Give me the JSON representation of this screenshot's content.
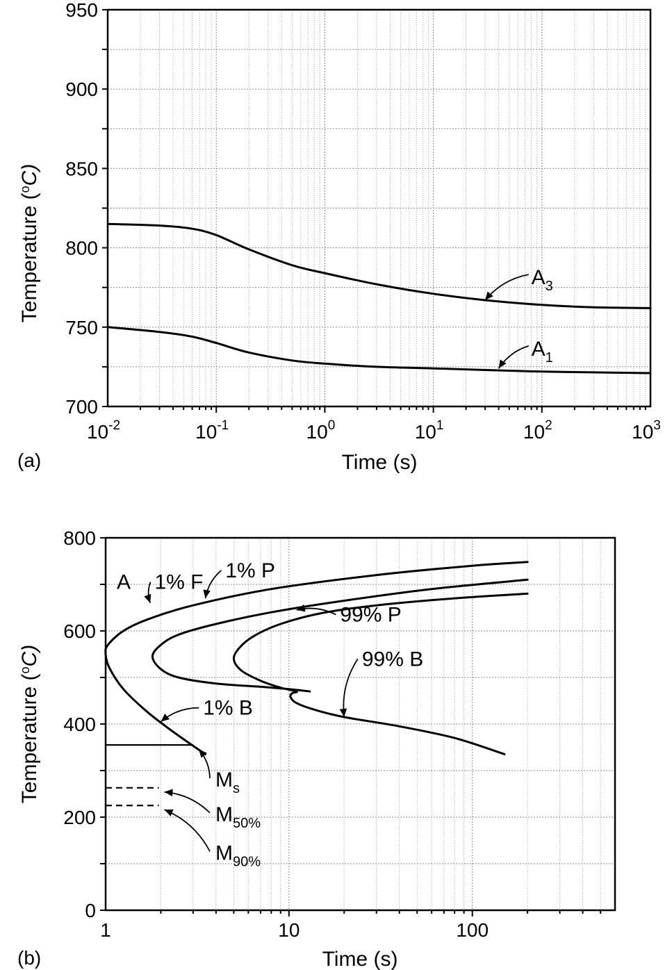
{
  "chart_data": [
    {
      "panel_label": "(a)",
      "type": "line",
      "xscale": "log",
      "xlim": [
        0.01,
        1000
      ],
      "ylim": [
        700,
        950
      ],
      "xlabel": "Time (s)",
      "ylabel": {
        "main": "Temperature (",
        "sup": "o",
        "unit": "C)"
      },
      "grid": true,
      "xticks": [
        {
          "value": 0.01,
          "base": "10",
          "exp": "-2"
        },
        {
          "value": 0.1,
          "base": "10",
          "exp": "-1"
        },
        {
          "value": 1,
          "base": "10",
          "exp": "0"
        },
        {
          "value": 10,
          "base": "10",
          "exp": "1"
        },
        {
          "value": 100,
          "base": "10",
          "exp": "2"
        },
        {
          "value": 1000,
          "base": "10",
          "exp": "3"
        }
      ],
      "yticks": [
        {
          "value": 700,
          "label": "700"
        },
        {
          "value": 750,
          "label": "750"
        },
        {
          "value": 800,
          "label": "800"
        },
        {
          "value": 850,
          "label": "850"
        },
        {
          "value": 900,
          "label": "900"
        },
        {
          "value": 950,
          "label": "950"
        }
      ],
      "series": [
        {
          "name": "A3",
          "x": [
            0.01,
            0.03,
            0.06,
            0.1,
            0.2,
            0.5,
            1,
            3,
            10,
            30,
            100,
            300,
            1000
          ],
          "y": [
            815,
            814,
            812,
            808,
            799,
            789,
            784,
            777,
            771,
            767,
            764,
            762.5,
            762
          ]
        },
        {
          "name": "A1",
          "x": [
            0.01,
            0.03,
            0.06,
            0.1,
            0.2,
            0.5,
            1,
            3,
            10,
            30,
            100,
            300,
            1000
          ],
          "y": [
            750,
            747,
            744,
            740,
            734,
            729,
            727,
            725,
            724,
            723,
            722,
            721.5,
            721
          ]
        }
      ],
      "annotations": [
        {
          "text": "A",
          "sub": "3",
          "x": 80,
          "y": 777,
          "arrow_to": {
            "x": 30,
            "y": 767
          }
        },
        {
          "text": "A",
          "sub": "1",
          "x": 80,
          "y": 732,
          "arrow_to": {
            "x": 40,
            "y": 724
          }
        }
      ]
    },
    {
      "panel_label": "(b)",
      "type": "line",
      "xscale": "log",
      "xlim": [
        1,
        600
      ],
      "ylim": [
        0,
        800
      ],
      "xlabel": "Time (s)",
      "ylabel": {
        "main": "Temperature (",
        "sup": "o",
        "unit": "C)"
      },
      "grid": true,
      "xticks": [
        {
          "value": 1,
          "label": "1"
        },
        {
          "value": 10,
          "label": "10"
        },
        {
          "value": 100,
          "label": "100"
        }
      ],
      "yticks": [
        {
          "value": 0,
          "label": "0"
        },
        {
          "value": 200,
          "label": "200"
        },
        {
          "value": 400,
          "label": "400"
        },
        {
          "value": 600,
          "label": "600"
        },
        {
          "value": 800,
          "label": "800"
        }
      ],
      "region_label": {
        "text": "A",
        "x": 1.15,
        "y": 690
      },
      "series": [
        {
          "name": "1% F / 1% B",
          "x": [
            3.5,
            2.4,
            1.7,
            1.25,
            1.05,
            1.0,
            1.03,
            1.25,
            1.7,
            3,
            8,
            30,
            100,
            200
          ],
          "y": [
            335,
            380,
            425,
            475,
            520,
            550,
            570,
            600,
            625,
            655,
            690,
            720,
            740,
            748
          ]
        },
        {
          "name": "1% P",
          "x": [
            13,
            10,
            7,
            4,
            2.5,
            2.0,
            1.8,
            2.0,
            2.5,
            4,
            8,
            20,
            60,
            200
          ],
          "y": [
            470,
            475,
            480,
            487,
            500,
            518,
            545,
            570,
            592,
            615,
            640,
            665,
            690,
            710
          ]
        },
        {
          "name": "99% P / 99% B",
          "x": [
            150,
            80,
            40,
            20,
            14,
            11,
            10.2,
            10.4,
            11,
            9,
            7,
            5.5,
            5.0,
            5.4,
            6.5,
            9,
            15,
            30,
            80,
            200
          ],
          "y": [
            335,
            370,
            395,
            415,
            430,
            445,
            458,
            466,
            470,
            478,
            493,
            515,
            540,
            565,
            590,
            615,
            638,
            655,
            670,
            680
          ]
        }
      ],
      "martensite": [
        {
          "name": "Ms",
          "label": "M",
          "sub": "s",
          "temp": 355,
          "x_end": 3.0,
          "style": "solid"
        },
        {
          "name": "M50%",
          "label": "M",
          "sub": "50%",
          "temp": 263,
          "x_end": 1.95,
          "style": "dashed"
        },
        {
          "name": "M90%",
          "label": "M",
          "sub": "90%",
          "temp": 225,
          "x_end": 1.95,
          "style": "dashed"
        }
      ],
      "annotations": [
        {
          "text": "1% F",
          "x": 1.85,
          "y": 690,
          "arrow_to": {
            "x": 1.75,
            "y": 660
          }
        },
        {
          "text": "1% P",
          "x": 4.5,
          "y": 715,
          "arrow_to": {
            "x": 3.5,
            "y": 670
          }
        },
        {
          "text": "99% P",
          "x": 19,
          "y": 620,
          "arrow_to": {
            "x": 11,
            "y": 645
          }
        },
        {
          "text": "99% B",
          "x": 25,
          "y": 525,
          "arrow_to": {
            "x": 20,
            "y": 415
          }
        },
        {
          "text": "1% B",
          "x": 3.4,
          "y": 420,
          "arrow_to": {
            "x": 2.0,
            "y": 405
          }
        }
      ]
    }
  ]
}
